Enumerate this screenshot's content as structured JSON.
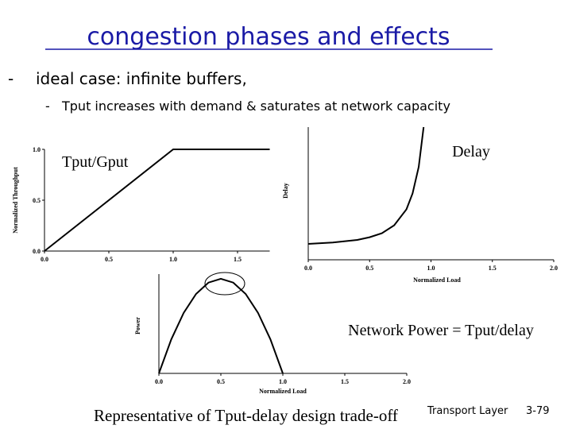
{
  "slide": {
    "title": "congestion phases and effects",
    "bullet": "ideal case: infinite buffers,",
    "sub_bullet": "Tput increases with demand & saturates at network capacity",
    "caption": "Representative of Tput-delay design trade-off",
    "footer": "Transport Layer",
    "page": "3-79"
  },
  "chart_data": [
    {
      "type": "line",
      "annotation": "Tput/Gput",
      "y_label": "Normalized Throughput",
      "x": [
        0,
        1,
        1.75
      ],
      "values": [
        0,
        1,
        1
      ],
      "color": "#000000",
      "xlim": [
        0,
        1.75
      ],
      "ylim": [
        0,
        1
      ],
      "xticks": [
        {
          "value": 0,
          "label": "0.0"
        },
        0.5,
        {
          "value": 1,
          "label": "1.0"
        },
        1.5
      ],
      "yticks": [
        {
          "value": 0,
          "label": "0.0"
        },
        0.5,
        {
          "value": 1,
          "label": "1.0"
        }
      ]
    },
    {
      "type": "line",
      "annotation": "Delay",
      "y_label": "Delay",
      "x_label": "Normalized Load",
      "x": [
        0,
        0.2,
        0.4,
        0.5,
        0.6,
        0.7,
        0.8,
        0.85,
        0.9,
        0.94
      ],
      "values": [
        1.2,
        1.3,
        1.5,
        1.7,
        2,
        2.6,
        3.8,
        5,
        7,
        10
      ],
      "color": "#000000",
      "xlim": [
        0,
        2
      ],
      "ylim": [
        0,
        10
      ],
      "xticks": [
        {
          "value": 0,
          "label": "0.0"
        },
        0.5,
        {
          "value": 1,
          "label": "1.0"
        },
        1.5,
        {
          "value": 2,
          "label": "2.0"
        }
      ]
    },
    {
      "type": "line",
      "annotation": "Network Power = Tput/delay",
      "y_label": "Power",
      "x_label": "Normalized Load",
      "x": [
        0,
        0.1,
        0.2,
        0.3,
        0.4,
        0.5,
        0.6,
        0.7,
        0.8,
        0.9,
        1
      ],
      "values": [
        0,
        0.36,
        0.64,
        0.84,
        0.96,
        1,
        0.96,
        0.84,
        0.64,
        0.36,
        0
      ],
      "color": "#000000",
      "xlim": [
        0,
        2
      ],
      "ylim": [
        0,
        1.05
      ],
      "xticks": [
        {
          "value": 0,
          "label": "0.0"
        },
        0.5,
        {
          "value": 1,
          "label": "1.0"
        },
        1.5,
        {
          "value": 2,
          "label": "2.0"
        }
      ]
    }
  ]
}
